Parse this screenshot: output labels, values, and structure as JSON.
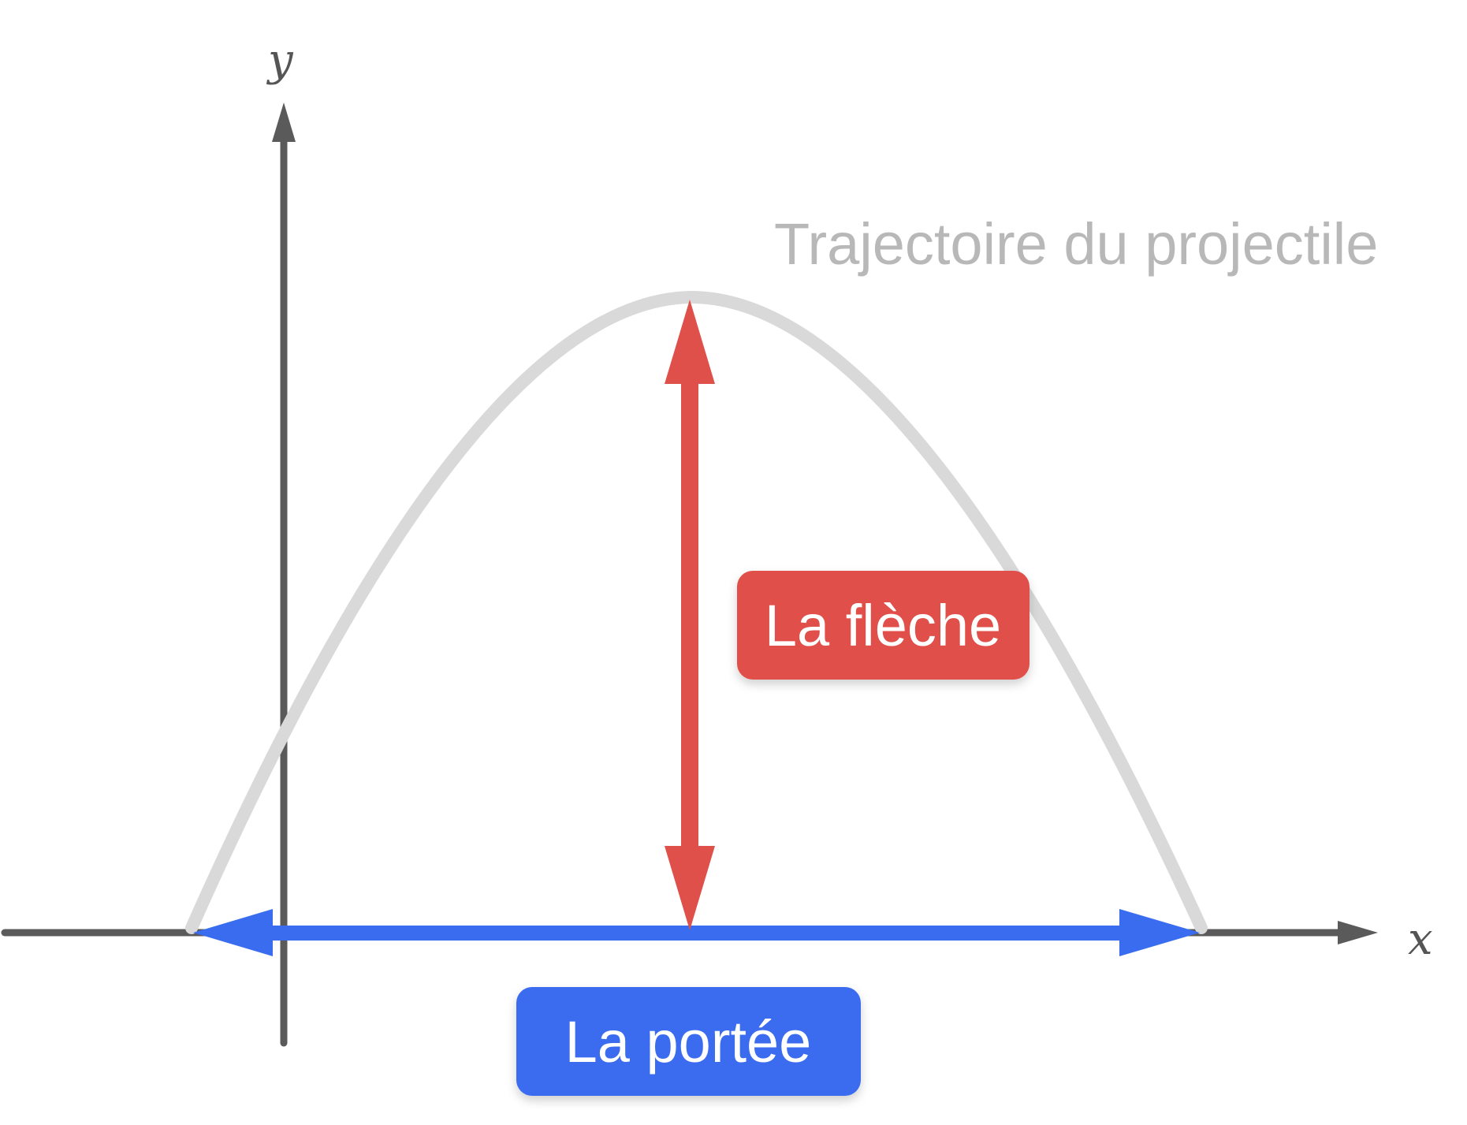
{
  "axes": {
    "x_label": "x",
    "y_label": "y"
  },
  "trajectory": {
    "label": "Trajectoire du projectile",
    "color": "#d9d9d9"
  },
  "height_marker": {
    "label": "La flèche",
    "color": "#e0504a"
  },
  "range_marker": {
    "label": "La portée",
    "color": "#3a6cf0"
  },
  "colors": {
    "axis": "#5a5a5a",
    "label_text": "#ffffff",
    "trajectory_label": "#b8b8b8"
  }
}
